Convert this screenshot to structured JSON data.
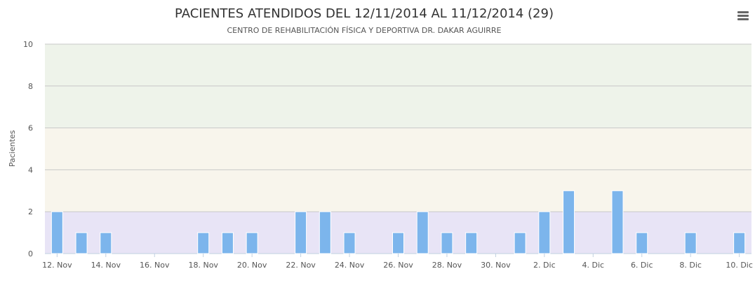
{
  "menu": {
    "icon": "hamburger-menu-icon"
  },
  "chart_data": {
    "type": "bar",
    "title": "PACIENTES ATENDIDOS DEL 12/11/2014 AL 11/12/2014 (29)",
    "subtitle": "CENTRO DE REHABILITACIÓN FÍSICA Y DEPORTIVA DR. DAKAR AGUIRRE",
    "ylabel": "Pacientes",
    "xlabel": "",
    "ylim": [
      0,
      10
    ],
    "yticks": [
      "0",
      "2",
      "4",
      "6",
      "8",
      "10"
    ],
    "grid": true,
    "legend": "none",
    "bar_color": "#7cb5ec",
    "bands": [
      {
        "from": 0,
        "to": 2,
        "color": "#e8e4f6"
      },
      {
        "from": 2,
        "to": 6,
        "color": "#f8f5ec"
      },
      {
        "from": 6,
        "to": 10,
        "color": "#eef3ea"
      }
    ],
    "categories": [
      "12/11/2014",
      "13/11/2014",
      "14/11/2014",
      "15/11/2014",
      "16/11/2014",
      "17/11/2014",
      "18/11/2014",
      "19/11/2014",
      "20/11/2014",
      "21/11/2014",
      "22/11/2014",
      "23/11/2014",
      "24/11/2014",
      "25/11/2014",
      "26/11/2014",
      "27/11/2014",
      "28/11/2014",
      "29/11/2014",
      "30/11/2014",
      "01/12/2014",
      "02/12/2014",
      "03/12/2014",
      "04/12/2014",
      "05/12/2014",
      "06/12/2014",
      "07/12/2014",
      "08/12/2014",
      "09/12/2014",
      "10/12/2014"
    ],
    "values": [
      2,
      1,
      1,
      0,
      0,
      0,
      1,
      1,
      1,
      0,
      2,
      2,
      1,
      0,
      1,
      2,
      1,
      1,
      0,
      1,
      2,
      3,
      0,
      3,
      1,
      0,
      1,
      0,
      1
    ],
    "xtick_labels": [
      {
        "date": "12/11/2014",
        "label": "12. Nov"
      },
      {
        "date": "14/11/2014",
        "label": "14. Nov"
      },
      {
        "date": "16/11/2014",
        "label": "16. Nov"
      },
      {
        "date": "18/11/2014",
        "label": "18. Nov"
      },
      {
        "date": "20/11/2014",
        "label": "20. Nov"
      },
      {
        "date": "22/11/2014",
        "label": "22. Nov"
      },
      {
        "date": "24/11/2014",
        "label": "24. Nov"
      },
      {
        "date": "26/11/2014",
        "label": "26. Nov"
      },
      {
        "date": "28/11/2014",
        "label": "28. Nov"
      },
      {
        "date": "30/11/2014",
        "label": "30. Nov"
      },
      {
        "date": "02/12/2014",
        "label": "2. Dic"
      },
      {
        "date": "04/12/2014",
        "label": "4. Dic"
      },
      {
        "date": "06/12/2014",
        "label": "6. Dic"
      },
      {
        "date": "08/12/2014",
        "label": "8. Dic"
      },
      {
        "date": "10/12/2014",
        "label": "10. Dic"
      }
    ]
  }
}
